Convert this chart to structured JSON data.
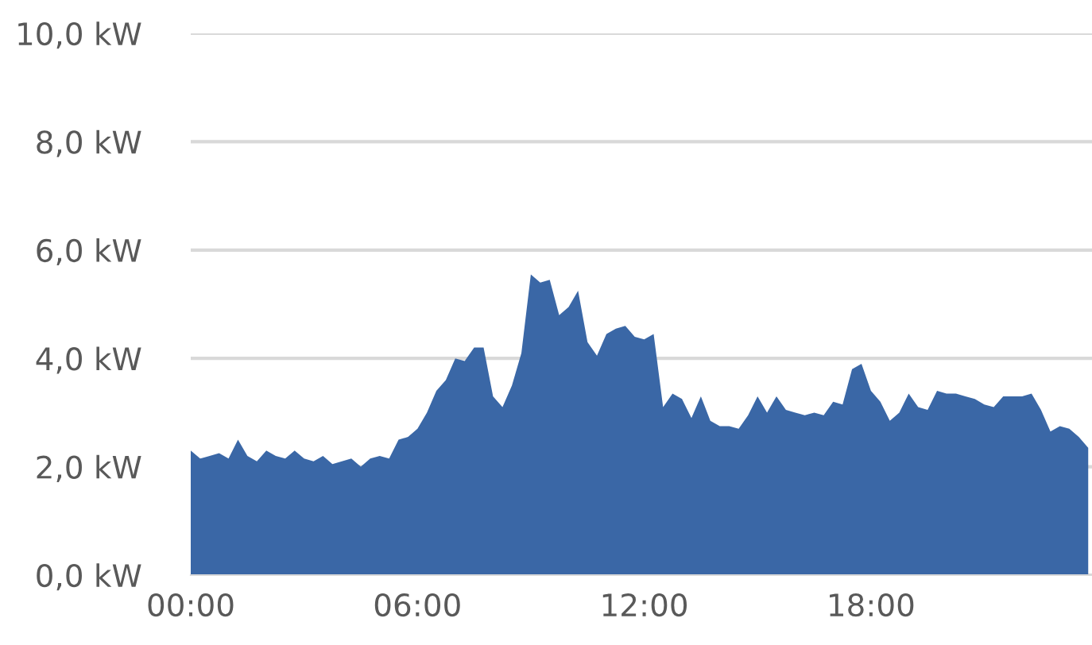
{
  "chart_data": {
    "type": "area",
    "x": [
      0,
      0.25,
      0.5,
      0.75,
      1,
      1.25,
      1.5,
      1.75,
      2,
      2.25,
      2.5,
      2.75,
      3,
      3.25,
      3.5,
      3.75,
      4,
      4.25,
      4.5,
      4.75,
      5,
      5.25,
      5.5,
      5.75,
      6,
      6.25,
      6.5,
      6.75,
      7,
      7.25,
      7.5,
      7.75,
      8,
      8.25,
      8.5,
      8.75,
      9,
      9.25,
      9.5,
      9.75,
      10,
      10.25,
      10.5,
      10.75,
      11,
      11.25,
      11.5,
      11.75,
      12,
      12.25,
      12.5,
      12.75,
      13,
      13.25,
      13.5,
      13.75,
      14,
      14.25,
      14.5,
      14.75,
      15,
      15.25,
      15.5,
      15.75,
      16,
      16.25,
      16.5,
      16.75,
      17,
      17.25,
      17.5,
      17.75,
      18,
      18.25,
      18.5,
      18.75,
      19,
      19.25,
      19.5,
      19.75,
      20,
      20.25,
      20.5,
      20.75,
      21,
      21.25,
      21.5,
      21.75,
      22,
      22.25,
      22.5,
      22.75,
      23,
      23.25,
      23.5,
      23.75
    ],
    "series": [
      {
        "color": "#3a67a6",
        "values": [
          2.3,
          2.15,
          2.2,
          2.25,
          2.15,
          2.5,
          2.2,
          2.1,
          2.3,
          2.2,
          2.15,
          2.3,
          2.15,
          2.1,
          2.2,
          2.05,
          2.1,
          2.15,
          2.0,
          2.15,
          2.2,
          2.15,
          2.5,
          2.55,
          2.7,
          3.0,
          3.4,
          3.6,
          4.0,
          3.95,
          4.2,
          4.2,
          3.3,
          3.1,
          3.5,
          4.1,
          5.55,
          5.4,
          5.45,
          4.8,
          4.95,
          5.25,
          4.3,
          4.05,
          4.45,
          4.55,
          4.6,
          4.4,
          4.35,
          4.45,
          3.1,
          3.35,
          3.25,
          2.9,
          3.3,
          2.85,
          2.75,
          2.75,
          2.7,
          2.95,
          3.3,
          3.0,
          3.3,
          3.05,
          3.0,
          2.95,
          3.0,
          2.95,
          3.2,
          3.15,
          3.8,
          3.9,
          3.4,
          3.2,
          2.85,
          3.0,
          3.35,
          3.1,
          3.05,
          3.4,
          3.35,
          3.35,
          3.3,
          3.25,
          3.15,
          3.1,
          3.3,
          3.3,
          3.3,
          3.35,
          3.05,
          2.65,
          2.75,
          2.7,
          2.55,
          2.35
        ]
      }
    ],
    "xlim": [
      0,
      23.85
    ],
    "xticks": [
      {
        "value": 0,
        "label": "00:00"
      },
      {
        "value": 6,
        "label": "06:00"
      },
      {
        "value": 12,
        "label": "12:00"
      },
      {
        "value": 18,
        "label": "18:00"
      }
    ],
    "ylim": [
      0,
      10
    ],
    "yticks": [
      {
        "value": 0,
        "label": "0,0 kW"
      },
      {
        "value": 2,
        "label": "2,0 kW"
      },
      {
        "value": 4,
        "label": "4,0 kW"
      },
      {
        "value": 6,
        "label": "6,0 kW"
      },
      {
        "value": 8,
        "label": "8,0 kW"
      },
      {
        "value": 10,
        "label": "10,0 kW"
      }
    ],
    "grid": "y",
    "legend": false
  }
}
